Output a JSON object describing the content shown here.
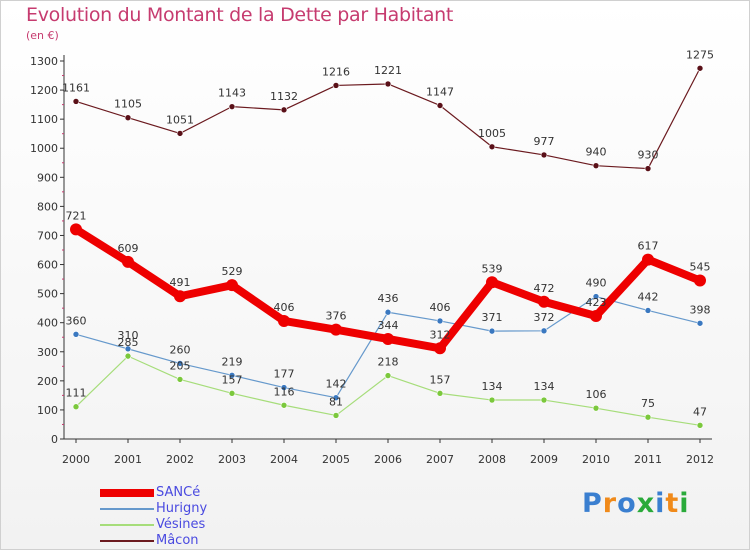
{
  "header": {
    "title": "Evolution du Montant de la Dette par Habitant",
    "subtitle": "(en €)"
  },
  "logo": {
    "text": "Proxiti"
  },
  "chart_data": {
    "type": "line",
    "title": "Evolution du Montant de la Dette par Habitant",
    "subtitle": "(en €)",
    "x": [
      "2000",
      "2001",
      "2002",
      "2003",
      "2004",
      "2005",
      "2006",
      "2007",
      "2008",
      "2009",
      "2010",
      "2011",
      "2012"
    ],
    "ylim": [
      0,
      1300
    ],
    "yticks": [
      0,
      100,
      200,
      300,
      400,
      500,
      600,
      700,
      800,
      900,
      1000,
      1100,
      1200,
      1300
    ],
    "grid": false,
    "legend_position": "bottom-left",
    "series": [
      {
        "name": "Mâcon",
        "color": "#6b1a1f",
        "point_color": "#5a1018",
        "width": 1.2,
        "values": [
          1161,
          1105,
          1051,
          1143,
          1132,
          1216,
          1221,
          1147,
          1005,
          977,
          940,
          930,
          1275
        ]
      },
      {
        "name": "Hurigny",
        "color": "#6699cc",
        "point_color": "#3a78c0",
        "width": 1.2,
        "values": [
          360,
          310,
          260,
          219,
          177,
          142,
          436,
          406,
          371,
          372,
          490,
          442,
          398
        ]
      },
      {
        "name": "Vésines",
        "color": "#a6dd7a",
        "point_color": "#7bc83c",
        "width": 1.2,
        "values": [
          111,
          285,
          205,
          157,
          116,
          81,
          218,
          157,
          134,
          134,
          106,
          75,
          47
        ]
      },
      {
        "name": "SANCé",
        "color": "#ee0000",
        "point_color": "#ee0000",
        "width": 8,
        "values": [
          721,
          609,
          491,
          529,
          406,
          376,
          344,
          312,
          539,
          472,
          423,
          617,
          545
        ]
      }
    ],
    "legend_order": [
      "SANCé",
      "Hurigny",
      "Vésines",
      "Mâcon"
    ]
  }
}
